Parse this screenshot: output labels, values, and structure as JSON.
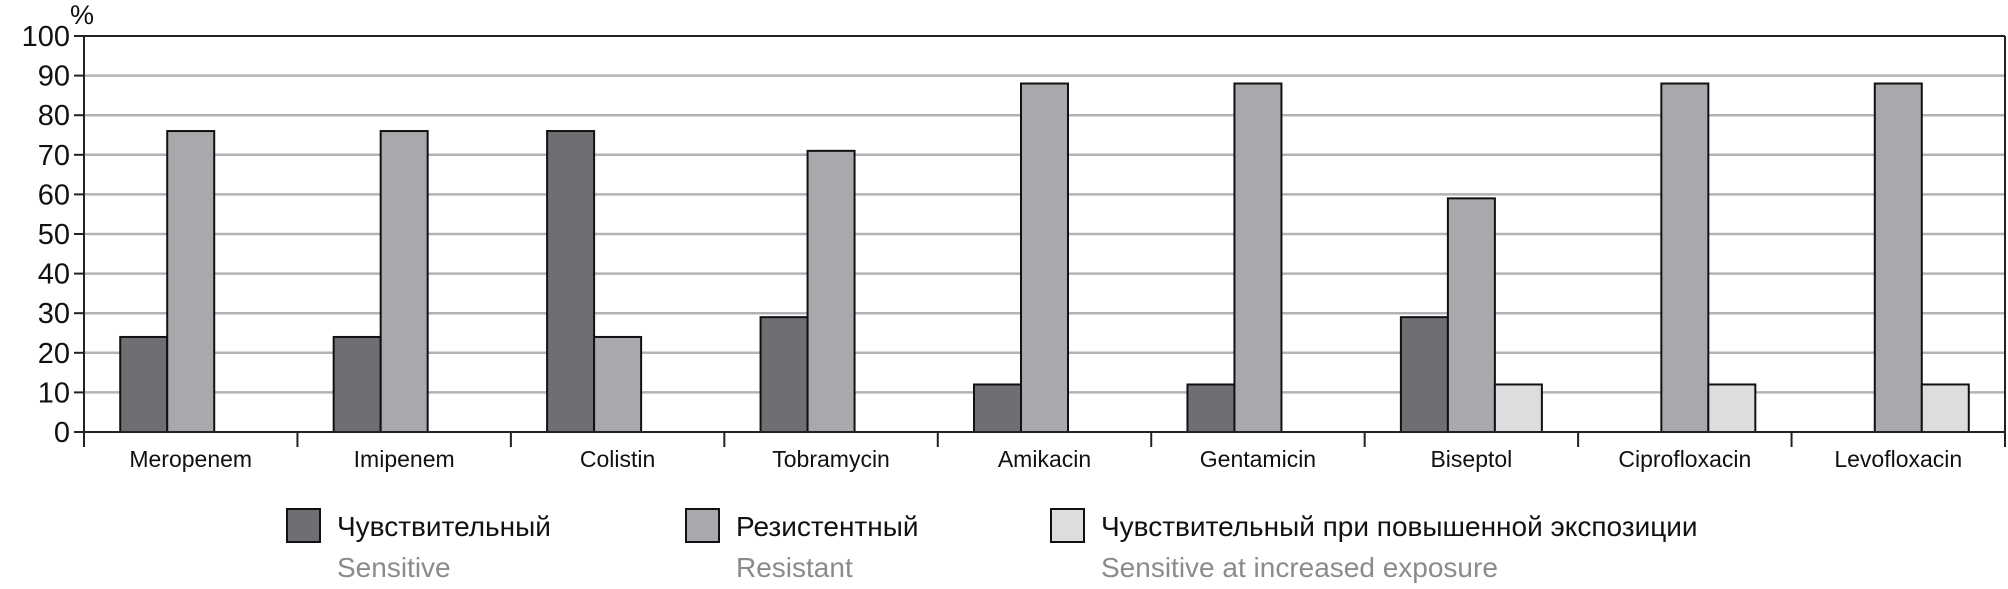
{
  "chart_data": {
    "type": "bar",
    "title": "",
    "xlabel": "",
    "ylabel": "%",
    "ylim": [
      0,
      100
    ],
    "yticks": [
      0,
      10,
      20,
      30,
      40,
      50,
      60,
      70,
      80,
      90,
      100
    ],
    "grid": true,
    "legend_placement": "bottom",
    "categories": [
      "Meropenem",
      "Imipenem",
      "Colistin",
      "Tobramycin",
      "Amikacin",
      "Gentamicin",
      "Biseptol",
      "Ciprofloxacin",
      "Levofloxacin"
    ],
    "series": [
      {
        "name": "Чувствительный",
        "subtitle": "Sensitive",
        "color": "#6e6f73",
        "values": [
          24,
          24,
          76,
          29,
          12,
          12,
          29,
          null,
          null
        ]
      },
      {
        "name": "Резистентный",
        "subtitle": "Resistant",
        "color": "#a8a9ad",
        "values": [
          76,
          76,
          24,
          71,
          88,
          88,
          59,
          88,
          88
        ]
      },
      {
        "name": "Чувствительный при повышенной экспозиции",
        "subtitle": "Sensitive at increased exposure",
        "color": "#dcdddf",
        "values": [
          null,
          null,
          null,
          null,
          null,
          null,
          12,
          12,
          12
        ]
      }
    ]
  }
}
